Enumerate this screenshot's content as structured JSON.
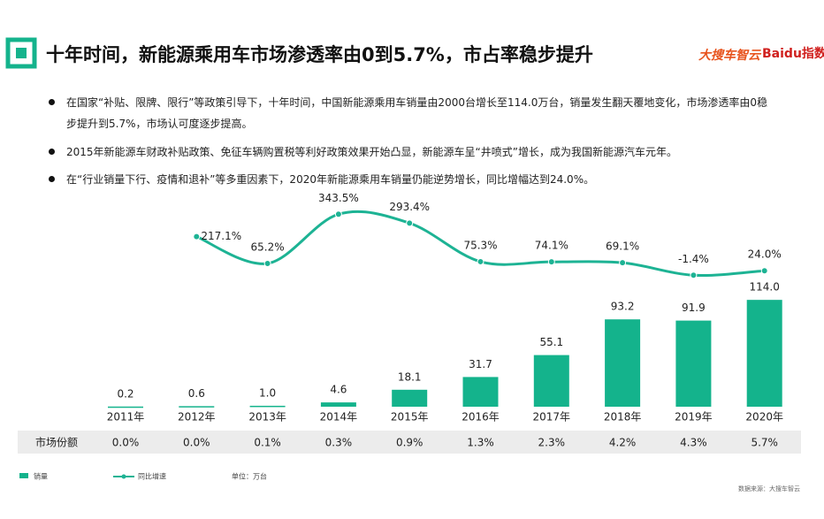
{
  "header": {
    "title": "十年时间，新能源乘用车市场渗透率由0到5.7%，市占率稳步提升",
    "logos": [
      "大搜车智云",
      "Baidu指数"
    ]
  },
  "bullets": [
    "在国家“补贴、限牌、限行”等政策引导下，十年时间，中国新能源乘用车销量由2000台增长至114.0万台，销量发生翻天覆地变化，市场渗透率由0稳步提升到5.7%，市场认可度逐步提高。",
    "2015年新能源车财政补贴政策、免征车辆购置税等利好政策效果开始凸显，新能源车呈“井喷式”增长，成为我国新能源汽车元年。",
    "在“行业销量下行、疫情和退补”等多重因素下，2020年新能源乘用车销量仍能逆势增长，同比增幅达到24.0%。"
  ],
  "chart_data": {
    "type": "bar",
    "categories": [
      "2011年",
      "2012年",
      "2013年",
      "2014年",
      "2015年",
      "2016年",
      "2017年",
      "2018年",
      "2019年",
      "2020年"
    ],
    "series": [
      {
        "name": "销量",
        "color": "#14b38c",
        "values": [
          0.2,
          0.6,
          1.0,
          4.6,
          18.1,
          31.7,
          55.1,
          93.2,
          91.9,
          114.0
        ],
        "value_labels": [
          "0.2",
          "0.6",
          "1.0",
          "4.6",
          "18.1",
          "31.7",
          "55.1",
          "93.2",
          "91.9",
          "114.0"
        ]
      },
      {
        "name": "同比增速",
        "type": "line",
        "color": "#1db394",
        "values": [
          null,
          217.1,
          65.2,
          343.5,
          293.4,
          75.3,
          74.1,
          69.1,
          -1.4,
          24.0
        ],
        "value_labels": [
          null,
          "217.1%",
          "65.2%",
          "343.5%",
          "293.4%",
          "75.3%",
          "74.1%",
          "69.1%",
          "-1.4%",
          "24.0%"
        ]
      }
    ],
    "market_share": {
      "label": "市场份额",
      "values": [
        0.0,
        0.0,
        0.1,
        0.3,
        0.9,
        1.3,
        2.3,
        4.2,
        4.3,
        5.7
      ],
      "value_labels": [
        "0.0%",
        "0.0%",
        "0.1%",
        "0.3%",
        "0.9%",
        "1.3%",
        "2.3%",
        "4.2%",
        "4.3%",
        "5.7%"
      ]
    },
    "unit": "单位：万台"
  },
  "source": "数据来源：大搜车智云"
}
